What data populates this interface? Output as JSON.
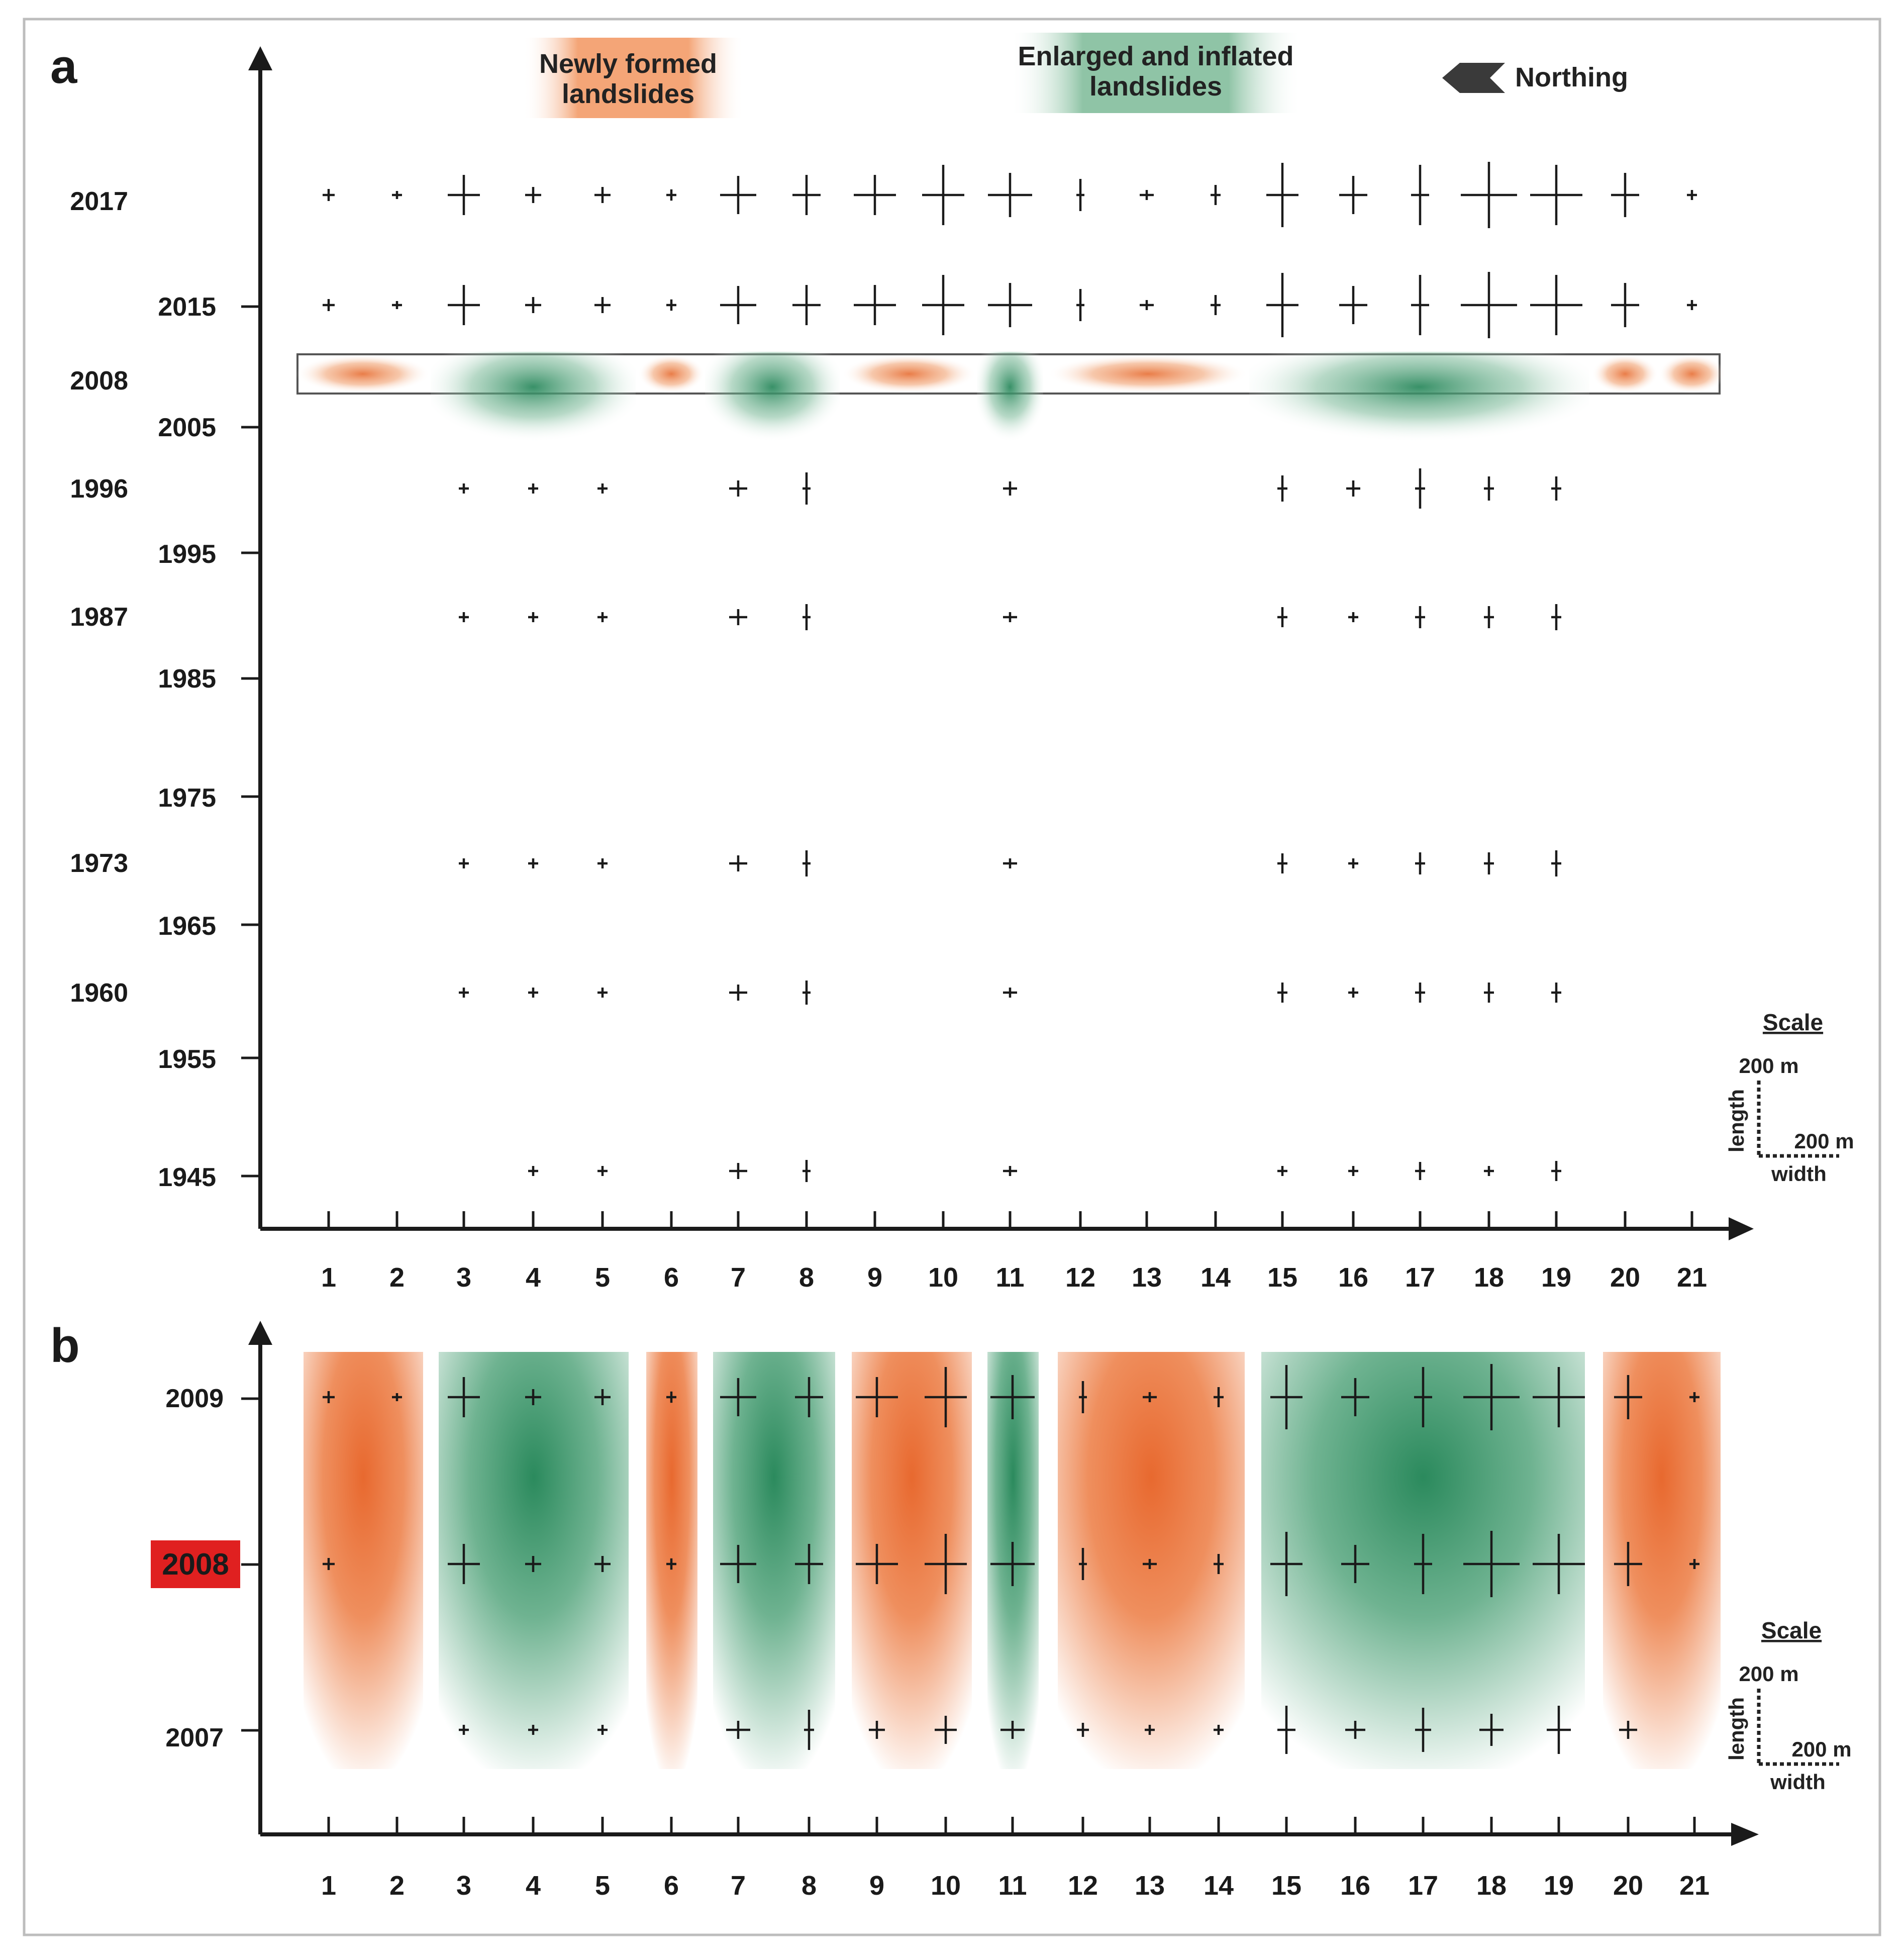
{
  "panels": {
    "a": {
      "label": "a"
    },
    "b": {
      "label": "b"
    }
  },
  "legend": {
    "new_line1": "Newly formed",
    "new_line2": "landslides",
    "enlarged_line1": "Enlarged and inflated",
    "enlarged_line2": "landslides",
    "northing": "Northing"
  },
  "scale": {
    "title": "Scale",
    "length_value": "200 m",
    "width_value": "200 m",
    "length_label": "length",
    "width_label": "width"
  },
  "colors": {
    "new": "#e8763f",
    "enlarged": "#2e8b60",
    "highlight": "#e02020",
    "ink": "#1a1a1a"
  },
  "chart_data": [
    {
      "type": "scatter",
      "panel": "a",
      "title": "",
      "xlabel": "",
      "ylabel": "",
      "categories": [
        "1",
        "2",
        "3",
        "4",
        "5",
        "6",
        "7",
        "8",
        "9",
        "10",
        "11",
        "12",
        "13",
        "14",
        "15",
        "16",
        "17",
        "18",
        "19",
        "20",
        "21"
      ],
      "y_tick_labels_left": [
        "2017",
        "2008",
        "1996",
        "1987",
        "1973",
        "1960"
      ],
      "y_tick_labels_right": [
        "2015",
        "2005",
        "1995",
        "1985",
        "1975",
        "1965",
        "1955",
        "1945"
      ],
      "highlight_year": "2008",
      "bands": [
        {
          "kind": "new",
          "from": 1,
          "to": 2
        },
        {
          "kind": "enlarged",
          "from": 3,
          "to": 5
        },
        {
          "kind": "new",
          "from": 6,
          "to": 6
        },
        {
          "kind": "enlarged",
          "from": 7,
          "to": 8
        },
        {
          "kind": "new",
          "from": 9,
          "to": 10
        },
        {
          "kind": "enlarged",
          "from": 11,
          "to": 11
        },
        {
          "kind": "new",
          "from": 12,
          "to": 14
        },
        {
          "kind": "enlarged",
          "from": 15,
          "to": 19
        },
        {
          "kind": "new",
          "from": 20,
          "to": 20
        },
        {
          "kind": "new",
          "from": 21,
          "to": 21
        }
      ],
      "series": [
        {
          "name": "2017",
          "length": [
            30,
            20,
            100,
            40,
            40,
            28,
            95,
            100,
            100,
            150,
            110,
            80,
            25,
            50,
            160,
            95,
            150,
            165,
            150,
            110,
            25
          ],
          "width": [
            30,
            25,
            80,
            40,
            40,
            25,
            90,
            70,
            105,
            105,
            110,
            20,
            35,
            25,
            80,
            70,
            45,
            140,
            130,
            70,
            25
          ]
        },
        {
          "name": "2015",
          "length": [
            30,
            20,
            100,
            40,
            40,
            28,
            95,
            100,
            100,
            150,
            110,
            80,
            25,
            50,
            160,
            95,
            150,
            165,
            150,
            110,
            25
          ],
          "width": [
            30,
            25,
            80,
            40,
            40,
            25,
            90,
            70,
            105,
            105,
            110,
            20,
            35,
            25,
            80,
            70,
            45,
            140,
            130,
            70,
            25
          ]
        },
        {
          "name": "1996",
          "length": [
            null,
            null,
            25,
            25,
            25,
            null,
            40,
            80,
            null,
            null,
            35,
            null,
            null,
            null,
            65,
            40,
            100,
            60,
            60,
            null,
            null
          ],
          "width": [
            null,
            null,
            25,
            25,
            25,
            null,
            45,
            20,
            null,
            null,
            35,
            null,
            null,
            null,
            25,
            35,
            25,
            25,
            25,
            null,
            null
          ]
        },
        {
          "name": "1987",
          "length": [
            null,
            null,
            25,
            25,
            25,
            null,
            40,
            65,
            null,
            null,
            25,
            null,
            null,
            null,
            50,
            25,
            55,
            55,
            65,
            null,
            null
          ],
          "width": [
            null,
            null,
            25,
            25,
            25,
            null,
            45,
            20,
            null,
            null,
            35,
            null,
            null,
            null,
            25,
            25,
            25,
            25,
            25,
            null,
            null
          ]
        },
        {
          "name": "1973",
          "length": [
            null,
            null,
            25,
            25,
            25,
            null,
            40,
            65,
            null,
            null,
            25,
            null,
            null,
            null,
            50,
            25,
            55,
            55,
            65,
            null,
            null
          ],
          "width": [
            null,
            null,
            25,
            25,
            25,
            null,
            45,
            20,
            null,
            null,
            35,
            null,
            null,
            null,
            25,
            25,
            25,
            25,
            25,
            null,
            null
          ]
        },
        {
          "name": "1960",
          "length": [
            null,
            null,
            25,
            25,
            25,
            null,
            40,
            60,
            null,
            null,
            25,
            null,
            null,
            null,
            50,
            25,
            50,
            50,
            50,
            null,
            null
          ],
          "width": [
            null,
            null,
            25,
            25,
            25,
            null,
            45,
            20,
            null,
            null,
            35,
            null,
            null,
            null,
            25,
            25,
            25,
            25,
            25,
            null,
            null
          ]
        },
        {
          "name": "1945",
          "length": [
            null,
            null,
            null,
            25,
            25,
            null,
            40,
            55,
            null,
            null,
            25,
            null,
            null,
            null,
            25,
            25,
            45,
            25,
            50,
            null,
            null
          ],
          "width": [
            null,
            null,
            null,
            25,
            25,
            null,
            45,
            20,
            null,
            null,
            35,
            null,
            null,
            null,
            25,
            25,
            25,
            25,
            25,
            null,
            null
          ]
        }
      ]
    },
    {
      "type": "scatter",
      "panel": "b",
      "title": "",
      "xlabel": "",
      "ylabel": "",
      "categories": [
        "1",
        "2",
        "3",
        "4",
        "5",
        "6",
        "7",
        "8",
        "9",
        "10",
        "11",
        "12",
        "13",
        "14",
        "15",
        "16",
        "17",
        "18",
        "19",
        "20",
        "21"
      ],
      "y_tick_labels": [
        "2009",
        "2008",
        "2007"
      ],
      "highlight_year": "2008",
      "bands": [
        {
          "kind": "new",
          "from": 1,
          "to": 2
        },
        {
          "kind": "enlarged",
          "from": 3,
          "to": 5
        },
        {
          "kind": "new",
          "from": 6,
          "to": 6
        },
        {
          "kind": "enlarged",
          "from": 7,
          "to": 8
        },
        {
          "kind": "new",
          "from": 9,
          "to": 10
        },
        {
          "kind": "enlarged",
          "from": 11,
          "to": 11
        },
        {
          "kind": "new",
          "from": 12,
          "to": 14
        },
        {
          "kind": "enlarged",
          "from": 15,
          "to": 19
        },
        {
          "kind": "new",
          "from": 20,
          "to": 21
        }
      ],
      "series": [
        {
          "name": "2009",
          "length": [
            30,
            20,
            100,
            40,
            40,
            28,
            95,
            100,
            100,
            150,
            110,
            80,
            25,
            50,
            160,
            95,
            150,
            165,
            150,
            110,
            25
          ],
          "width": [
            30,
            25,
            80,
            40,
            40,
            25,
            90,
            70,
            105,
            105,
            110,
            20,
            35,
            25,
            80,
            70,
            45,
            140,
            130,
            70,
            25
          ]
        },
        {
          "name": "2008",
          "length": [
            30,
            null,
            100,
            40,
            40,
            28,
            95,
            100,
            100,
            150,
            110,
            80,
            25,
            50,
            160,
            95,
            150,
            165,
            150,
            110,
            25
          ],
          "width": [
            30,
            null,
            80,
            40,
            40,
            25,
            90,
            70,
            105,
            105,
            110,
            20,
            35,
            25,
            80,
            70,
            45,
            140,
            130,
            70,
            25
          ]
        },
        {
          "name": "2007",
          "length": [
            null,
            null,
            25,
            25,
            25,
            null,
            45,
            100,
            45,
            70,
            45,
            35,
            25,
            25,
            120,
            45,
            110,
            80,
            120,
            45,
            null
          ],
          "width": [
            null,
            null,
            25,
            25,
            25,
            null,
            60,
            25,
            40,
            55,
            60,
            30,
            25,
            25,
            45,
            50,
            40,
            60,
            60,
            45,
            null
          ]
        }
      ]
    }
  ]
}
